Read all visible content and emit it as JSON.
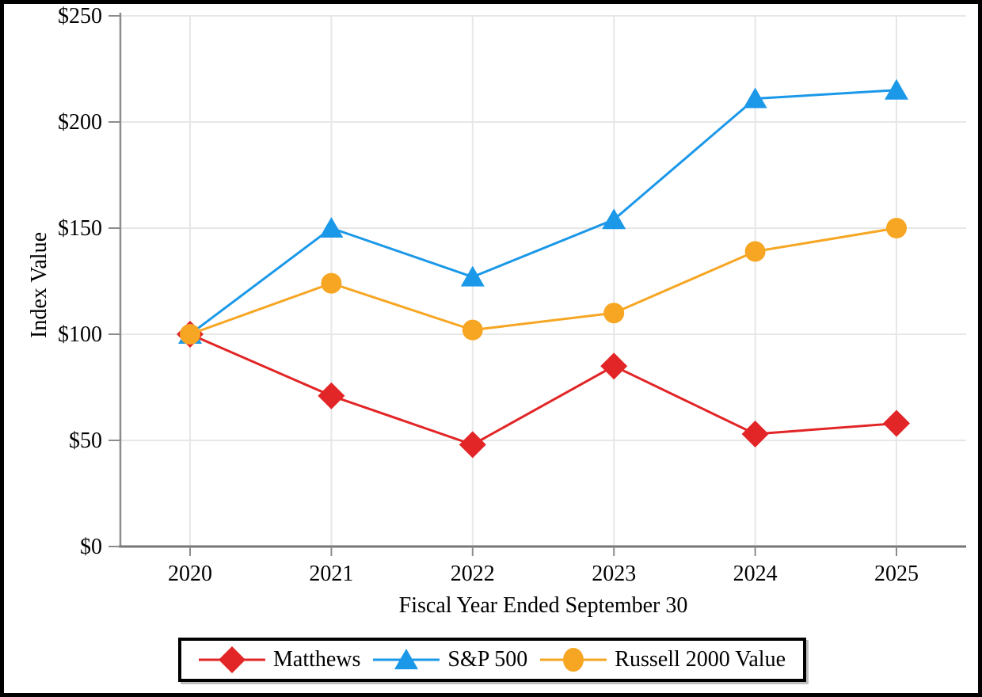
{
  "chart_data": {
    "type": "line",
    "title": "",
    "x": [
      "2020",
      "2021",
      "2022",
      "2023",
      "2024",
      "2025"
    ],
    "xlabel": "Fiscal Year Ended September 30",
    "ylabel": "Index Value",
    "ylim": [
      0,
      250
    ],
    "ytick_step": 50,
    "ytick_labels": [
      "$0",
      "$50",
      "$100",
      "$150",
      "$200",
      "$250"
    ],
    "grid": true,
    "legend_position": "bottom",
    "series": [
      {
        "name": "Matthews",
        "marker": "diamond",
        "color": "#E22526",
        "values": [
          100,
          71,
          48,
          85,
          53,
          58
        ]
      },
      {
        "name": "S&P 500",
        "marker": "triangle",
        "color": "#1C98E8",
        "values": [
          100,
          150,
          127,
          154,
          211,
          215
        ]
      },
      {
        "name": "Russell 2000 Value",
        "marker": "circle",
        "color": "#F6A623",
        "values": [
          100,
          124,
          102,
          110,
          139,
          150
        ]
      }
    ],
    "colors": {
      "grid": "#E7E7E7",
      "y_axis": "#8C8C8C",
      "x_axis": "#757575",
      "text": "#000000",
      "frame": "#000000"
    }
  }
}
